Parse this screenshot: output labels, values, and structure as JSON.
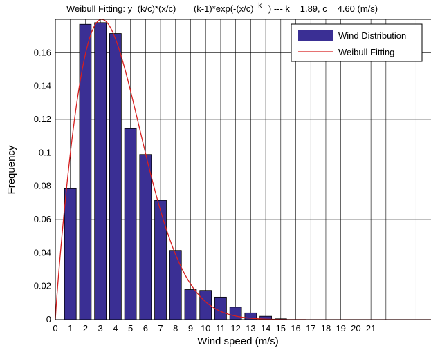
{
  "chart_data": {
    "type": "bar",
    "title": {
      "part1": "Weibull Fitting: y=(k/c)*(x/c)",
      "part2": "(k-1)*exp(-(x/c)",
      "superscript": "k",
      "part3": ") --- k = 1.89, c = 4.60 (m/s)"
    },
    "xlabel": "Wind speed (m/s)",
    "ylabel": "Frequency",
    "xlim": [
      0,
      25
    ],
    "ylim": [
      0,
      0.18
    ],
    "x_ticks": [
      0,
      1,
      2,
      3,
      4,
      5,
      6,
      7,
      8,
      9,
      10,
      11,
      12,
      13,
      14,
      15,
      16,
      17,
      18,
      19,
      20,
      21,
      22,
      23,
      24,
      25
    ],
    "x_tick_labels": [
      "0",
      "1",
      "2",
      "3",
      "4",
      "5",
      "6",
      "7",
      "8",
      "9",
      "10",
      "11",
      "12",
      "13",
      "14",
      "15",
      "16",
      "17",
      "18",
      "19",
      "20",
      "21",
      "",
      "",
      "",
      ""
    ],
    "y_ticks": [
      0,
      0.02,
      0.04,
      0.06,
      0.08,
      0.1,
      0.12,
      0.14,
      0.16
    ],
    "y_tick_labels": [
      "0",
      "0.02",
      "0.04",
      "0.06",
      "0.08",
      "0.1",
      "0.12",
      "0.14",
      "0.16"
    ],
    "grid": true,
    "legend_position": "top-right",
    "series": [
      {
        "name": "Wind Distribution",
        "kind": "bar",
        "color": "#3a2f94",
        "x": [
          1,
          2,
          3,
          4,
          5,
          6,
          7,
          8,
          9,
          10,
          11,
          12,
          13,
          14,
          15
        ],
        "values": [
          0.0785,
          0.177,
          0.178,
          0.1715,
          0.1145,
          0.099,
          0.0715,
          0.0415,
          0.018,
          0.0175,
          0.0135,
          0.0075,
          0.004,
          0.002,
          0.0005
        ]
      },
      {
        "name": "Weibull Fitting",
        "kind": "line",
        "color": "#d61f1f",
        "k": 1.89,
        "c": 4.6
      }
    ]
  }
}
